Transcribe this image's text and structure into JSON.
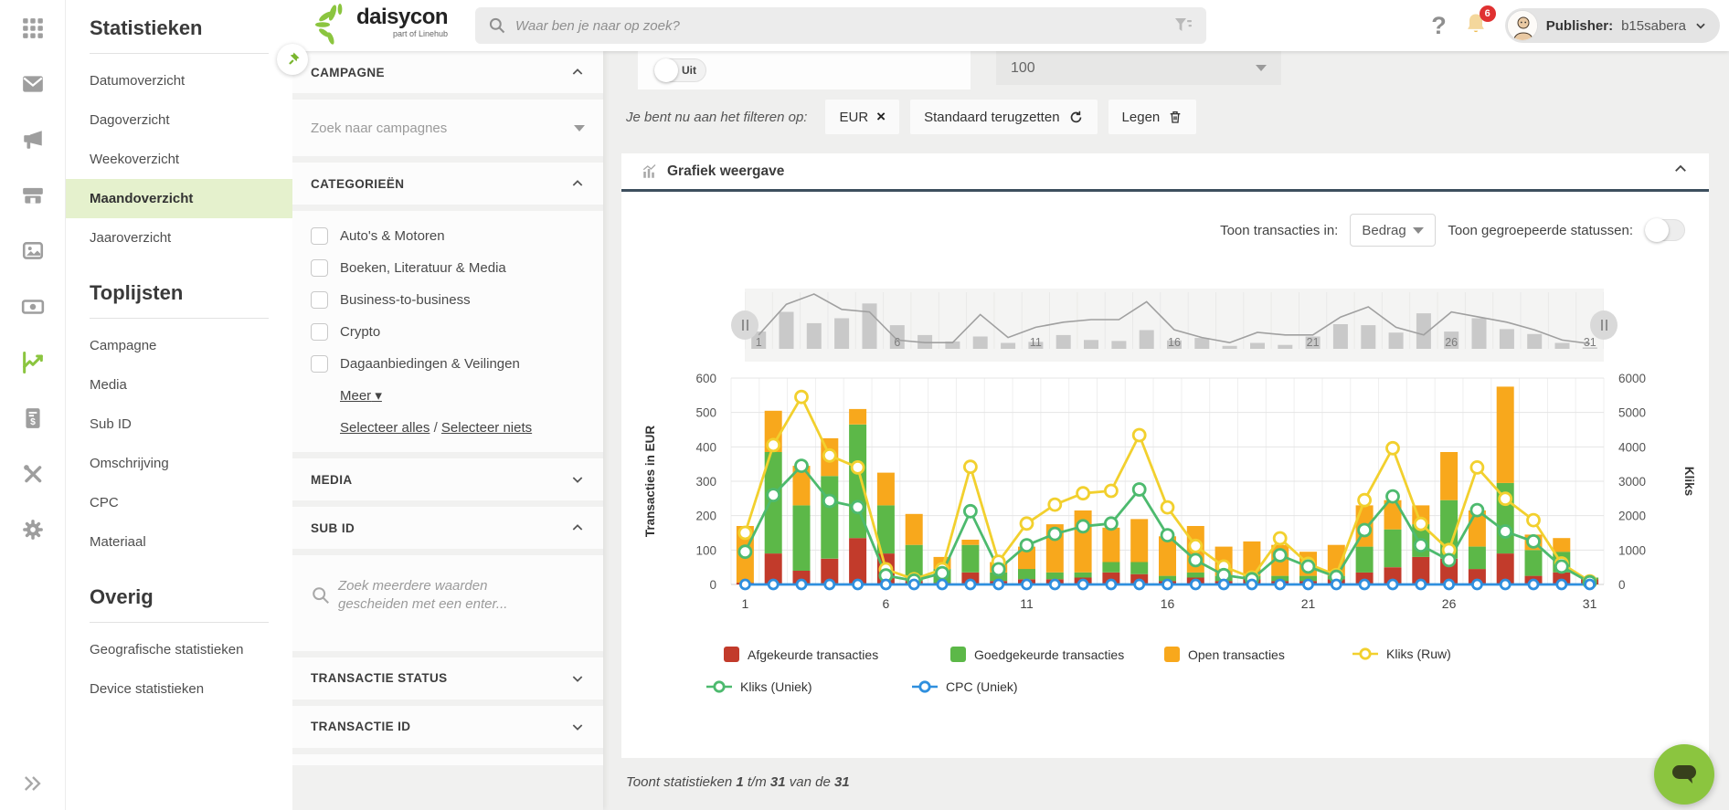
{
  "topbar": {
    "brand": {
      "name": "daisycon",
      "sub": "part of Linehub"
    },
    "search": {
      "placeholder": "Waar ben je naar op zoek?"
    },
    "notifications": {
      "count": "6"
    },
    "publisher": {
      "label": "Publisher:",
      "value": "b15sabera"
    }
  },
  "iconrail": {
    "items": [
      "apps",
      "mail",
      "promotions",
      "shop",
      "media",
      "payments",
      "statistics",
      "invoices",
      "tools",
      "settings"
    ],
    "collapse": "expand"
  },
  "sidebar": {
    "sections": [
      {
        "title": "Statistieken",
        "items": [
          {
            "label": "Datumoverzicht"
          },
          {
            "label": "Dagoverzicht"
          },
          {
            "label": "Weekoverzicht"
          },
          {
            "label": "Maandoverzicht",
            "active": true
          },
          {
            "label": "Jaaroverzicht"
          }
        ]
      },
      {
        "title": "Toplijsten",
        "items": [
          {
            "label": "Campagne"
          },
          {
            "label": "Media"
          },
          {
            "label": "Sub ID"
          },
          {
            "label": "Omschrijving"
          },
          {
            "label": "CPC"
          },
          {
            "label": "Materiaal"
          }
        ]
      },
      {
        "title": "Overig",
        "items": [
          {
            "label": "Geografische statistieken"
          },
          {
            "label": "Device statistieken"
          }
        ]
      }
    ]
  },
  "filters": {
    "campagne": {
      "title": "CAMPAGNE",
      "placeholder": "Zoek naar campagnes"
    },
    "categorieen": {
      "title": "CATEGORIEËN",
      "options": [
        "Auto's & Motoren",
        "Boeken, Literatuur & Media",
        "Business-to-business",
        "Crypto",
        "Dagaanbiedingen & Veilingen"
      ],
      "meer": "Meer",
      "select_all": "Selecteer alles",
      "separator": "/",
      "select_none": "Selecteer niets"
    },
    "media": {
      "title": "MEDIA"
    },
    "subid": {
      "title": "SUB ID",
      "placeholder": "Zoek meerdere waarden gescheiden met een enter..."
    },
    "transactie_status": {
      "title": "TRANSACTIE STATUS"
    },
    "transactie_id": {
      "title": "TRANSACTIE ID"
    }
  },
  "content": {
    "toggle_label": "Uit",
    "page_size": "100",
    "filter_bar": {
      "label": "Je bent nu aan het filteren op:",
      "chip": "EUR",
      "reset": "Standaard terugzetten",
      "clear": "Legen"
    },
    "chart_header": "Grafiek weergave",
    "controls": {
      "show_in_label": "Toon transacties in:",
      "show_in_value": "Bedrag",
      "grouped_label": "Toon gegroepeerde statussen:"
    },
    "footer": {
      "p1": "Toont statistieken",
      "n1": "1",
      "p2": "t/m",
      "n2": "31",
      "p3": "van de",
      "n3": "31"
    }
  },
  "colors": {
    "brand_green": "#8bc53f",
    "dark_rule": "#3d4f5e",
    "badge_red": "#e03131"
  },
  "chart_data": {
    "type": "bar",
    "subtype": "stacked-bars-with-lines",
    "title": "Grafiek weergave",
    "x": [
      1,
      2,
      3,
      4,
      5,
      6,
      7,
      8,
      9,
      10,
      11,
      12,
      13,
      14,
      15,
      16,
      17,
      18,
      19,
      20,
      21,
      22,
      23,
      24,
      25,
      26,
      27,
      28,
      29,
      30,
      31
    ],
    "x_ticks": [
      1,
      6,
      11,
      16,
      21,
      26,
      31
    ],
    "y_left": {
      "label": "Transacties in EUR",
      "min": 0,
      "max": 600,
      "step": 100
    },
    "y_right": {
      "label": "Kliks",
      "min": 0,
      "max": 6000,
      "step": 1000
    },
    "grid": true,
    "legend_position": "bottom",
    "bar_series": [
      {
        "name": "Afgekeurde transacties",
        "color": "#c23b2b",
        "axis": "left",
        "values": [
          5,
          90,
          40,
          75,
          135,
          90,
          10,
          5,
          35,
          10,
          15,
          15,
          20,
          35,
          30,
          10,
          20,
          10,
          15,
          10,
          10,
          15,
          35,
          50,
          80,
          75,
          45,
          90,
          25,
          35,
          15
        ]
      },
      {
        "name": "Goedgekeurde transacties",
        "color": "#5cb848",
        "axis": "left",
        "values": [
          0,
          295,
          190,
          240,
          330,
          140,
          105,
          40,
          80,
          25,
          30,
          20,
          15,
          30,
          35,
          15,
          15,
          15,
          10,
          15,
          15,
          10,
          75,
          110,
          95,
          170,
          65,
          205,
          75,
          60,
          5
        ]
      },
      {
        "name": "Open transacties",
        "color": "#f8a81c",
        "axis": "left",
        "values": [
          165,
          120,
          115,
          110,
          45,
          95,
          90,
          35,
          15,
          30,
          65,
          140,
          180,
          100,
          125,
          115,
          135,
          85,
          100,
          90,
          70,
          90,
          120,
          85,
          55,
          140,
          105,
          280,
          45,
          40,
          0
        ]
      }
    ],
    "line_series": [
      {
        "name": "Kliks (Ruw)",
        "color": "#f2d02e",
        "axis": "right",
        "values": [
          1500,
          4050,
          5450,
          3750,
          3400,
          440,
          150,
          440,
          3420,
          660,
          1770,
          2320,
          2650,
          2720,
          4340,
          2240,
          1120,
          520,
          200,
          1340,
          600,
          270,
          2450,
          3960,
          1760,
          1000,
          3400,
          2490,
          1870,
          610,
          90
        ]
      },
      {
        "name": "Kliks (Uniek)",
        "color": "#4dba6e",
        "axis": "right",
        "values": [
          950,
          2600,
          3450,
          2430,
          2250,
          260,
          110,
          330,
          2130,
          440,
          1140,
          1470,
          1690,
          1770,
          2760,
          1430,
          705,
          270,
          150,
          850,
          520,
          220,
          1580,
          2560,
          1140,
          705,
          2160,
          1540,
          1250,
          520,
          60
        ]
      },
      {
        "name": "CPC (Uniek)",
        "color": "#2f8fde",
        "axis": "right",
        "values": [
          0,
          0,
          0,
          0,
          0,
          0,
          0,
          0,
          0,
          0,
          0,
          0,
          0,
          0,
          0,
          0,
          0,
          0,
          0,
          0,
          0,
          0,
          0,
          0,
          0,
          0,
          0,
          0,
          0,
          0,
          0
        ]
      }
    ],
    "navigator": {
      "bars": [
        0.35,
        0.75,
        0.52,
        0.62,
        0.92,
        0.48,
        0.28,
        0.15,
        0.25,
        0.12,
        0.14,
        0.28,
        0.18,
        0.16,
        0.38,
        0.17,
        0.22,
        0.06,
        0.12,
        0.08,
        0.25,
        0.5,
        0.48,
        0.33,
        0.72,
        0.35,
        0.62,
        0.4,
        0.3,
        0.12,
        0.03
      ],
      "line": [
        0.2,
        0.8,
        1.0,
        0.7,
        0.65,
        0.1,
        0.05,
        0.05,
        0.6,
        0.15,
        0.35,
        0.45,
        0.5,
        0.5,
        0.85,
        0.3,
        0.15,
        0.05,
        0.25,
        0.2,
        0.2,
        0.55,
        0.75,
        0.35,
        0.2,
        0.65,
        0.55,
        0.45,
        0.3,
        0.1,
        0.03
      ]
    }
  }
}
